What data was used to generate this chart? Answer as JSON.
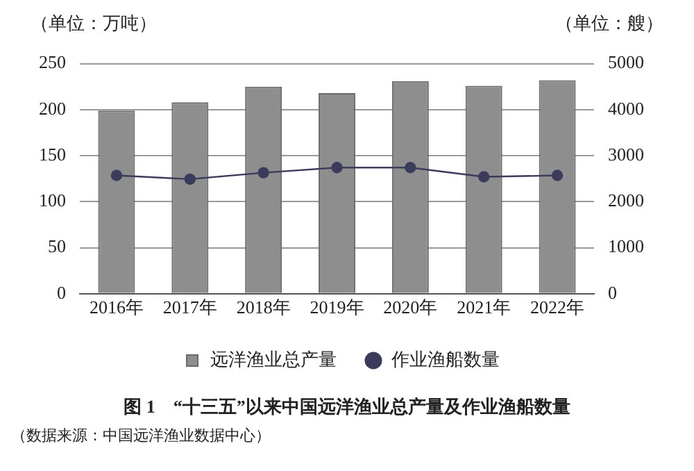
{
  "chart_data": {
    "type": "bar",
    "title": "图 1　“十三五”以来中国远洋渔业总产量及作业渔船数量",
    "ylabel": "（单位：万吨）",
    "y2label": "（单位：艘）",
    "categories": [
      "2016年",
      "2017年",
      "2018年",
      "2019年",
      "2020年",
      "2021年",
      "2022年"
    ],
    "series": [
      {
        "name": "远洋渔业总产量",
        "color": "#8e8e8e",
        "values": [
          199,
          208,
          225,
          218,
          231,
          226,
          232
        ]
      },
      {
        "name": "作业渔船数量",
        "type": "line",
        "axis": "y2",
        "color": "#3b3b5c",
        "marker": "circle",
        "values": [
          2570,
          2490,
          2630,
          2740,
          2740,
          2540,
          2570
        ]
      }
    ],
    "ylim": [
      0,
      250
    ],
    "yticks": [
      0,
      50,
      100,
      150,
      200,
      250
    ],
    "y2lim": [
      0,
      5000
    ],
    "y2ticks": [
      0,
      1000,
      2000,
      3000,
      4000,
      5000
    ],
    "grid": "y",
    "legend": "bottom",
    "annotations": [
      "（数据来源：中国远洋渔业数据中心）"
    ]
  }
}
